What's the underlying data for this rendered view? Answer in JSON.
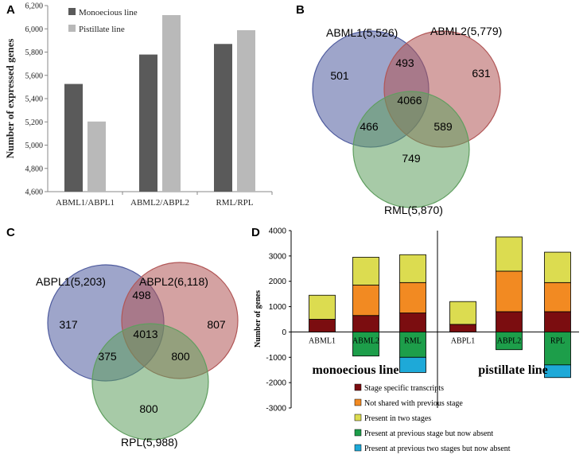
{
  "panels": {
    "a": "A",
    "b": "B",
    "c": "C",
    "d": "D"
  },
  "chart_data": [
    {
      "type": "bar",
      "panel": "A",
      "ylabel": "Number of expressed genes",
      "ylim": [
        4600,
        6200
      ],
      "yticks": [
        "4,600",
        "4,800",
        "5,000",
        "5,200",
        "5,400",
        "5,600",
        "5,800",
        "6,000",
        "6,200"
      ],
      "categories": [
        "ABML1/ABPL1",
        "ABML2/ABPL2",
        "RML/RPL"
      ],
      "series": [
        {
          "name": "Monoecious line",
          "values": [
            5526,
            5779,
            5870
          ],
          "color": "#5a5a5a"
        },
        {
          "name": "Pistillate line",
          "values": [
            5203,
            6118,
            5988
          ],
          "color": "#b9b9b9"
        }
      ]
    },
    {
      "type": "venn",
      "panel": "B",
      "sets": [
        {
          "label": "ABML1(5,526)",
          "color": "#4e5b9e"
        },
        {
          "label": "ABML2(5,779)",
          "color": "#b15656"
        },
        {
          "label": "RML(5,870)",
          "color": "#5f9e5f"
        }
      ],
      "regions": {
        "only1": "501",
        "only2": "631",
        "only3": "749",
        "r12": "493",
        "r13": "466",
        "r23": "589",
        "r123": "4066"
      }
    },
    {
      "type": "venn",
      "panel": "C",
      "sets": [
        {
          "label": "ABPL1(5,203)",
          "color": "#4e5b9e"
        },
        {
          "label": "ABPL2(6,118)",
          "color": "#b15656"
        },
        {
          "label": "RPL(5,988)",
          "color": "#5f9e5f"
        }
      ],
      "regions": {
        "only1": "317",
        "only2": "807",
        "only3": "800",
        "r12": "498",
        "r13": "375",
        "r23": "800",
        "r123": "4013"
      }
    },
    {
      "type": "bar",
      "panel": "D",
      "stacked": true,
      "ylabel": "Number of genes",
      "ylim": [
        -3000,
        4000
      ],
      "yticks": [
        "-3000",
        "-2000",
        "-1000",
        "0",
        "1000",
        "2000",
        "3000",
        "4000"
      ],
      "categories": [
        "ABML1",
        "ABML2",
        "RML",
        "ABPL1",
        "ABPL2",
        "RPL"
      ],
      "groups": [
        "monoecious line",
        "pistillate line"
      ],
      "positive_series": [
        {
          "name": "Stage specific transcripts",
          "color": "#7b0d10",
          "values": [
            500,
            650,
            750,
            300,
            800,
            800
          ]
        },
        {
          "name": "Not shared with previous stage",
          "color": "#f28a22",
          "values": [
            0,
            1200,
            1200,
            0,
            1600,
            1150
          ]
        },
        {
          "name": "Present in two stages",
          "color": "#dcdc50",
          "values": [
            950,
            1100,
            1100,
            900,
            1350,
            1200
          ]
        }
      ],
      "negative_series": [
        {
          "name": "Present at previous stage but now absent",
          "color": "#1d9e4a",
          "values": [
            0,
            -950,
            -1000,
            0,
            -700,
            -1300
          ]
        },
        {
          "name": "Present at previous two stages but now absent",
          "color": "#1ea9d8",
          "values": [
            0,
            0,
            -600,
            0,
            0,
            -500
          ]
        }
      ]
    }
  ]
}
